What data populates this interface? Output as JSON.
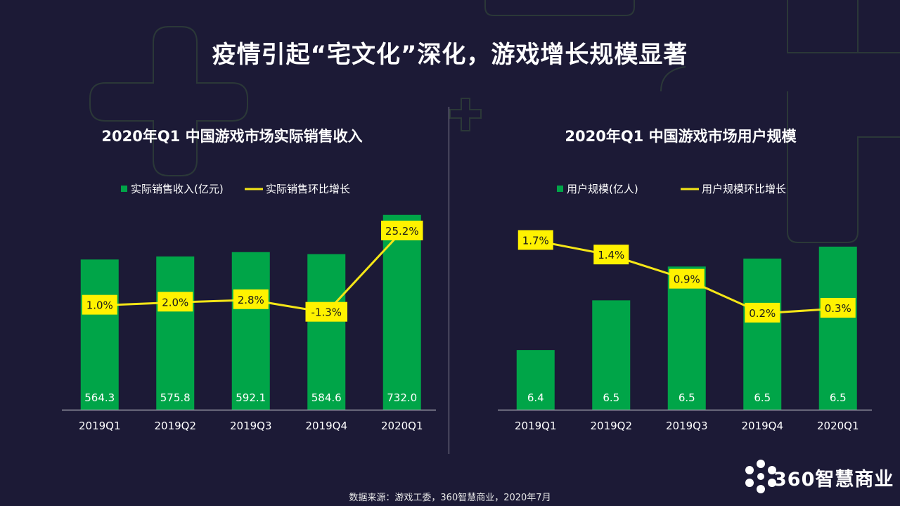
{
  "page": {
    "title": "疫情引起“宅文化”深化，游戏增长规模显著",
    "source": "数据来源：游戏工委，360智慧商业，2020年7月",
    "logo": "360智慧商业"
  },
  "colors": {
    "background": "#1c1a36",
    "bar": "#00a548",
    "line": "#f5e617",
    "label_bg": "#fff200",
    "label_text": "#1a1a1a",
    "axis": "#9a9aa8",
    "deco_stroke": "#2c3a3a"
  },
  "chart_data": [
    {
      "type": "bar",
      "title": "2020年Q1 中国游戏市场实际销售收入",
      "categories": [
        "2019Q1",
        "2019Q2",
        "2019Q3",
        "2019Q4",
        "2020Q1"
      ],
      "series": [
        {
          "name": "实际销售收入(亿元)",
          "type": "bar",
          "values": [
            564.3,
            575.8,
            592.1,
            584.6,
            732.0
          ],
          "labels": [
            "564.3",
            "575.8",
            "592.1",
            "584.6",
            "732.0"
          ]
        },
        {
          "name": "实际销售环比增长",
          "type": "line",
          "values": [
            1.0,
            2.0,
            2.8,
            -1.3,
            25.2
          ],
          "labels": [
            "1.0%",
            "2.0%",
            "2.8%",
            "-1.3%",
            "25.2%"
          ]
        }
      ],
      "bar_ylim": [
        0,
        800
      ],
      "line_ylim": [
        -30,
        30
      ],
      "legend": "top-center",
      "grid": false
    },
    {
      "type": "bar",
      "title": "2020年Q1 中国游戏市场用户规模",
      "categories": [
        "2019Q1",
        "2019Q2",
        "2019Q3",
        "2019Q4",
        "2020Q1"
      ],
      "series": [
        {
          "name": "用户规模(亿人)",
          "type": "bar",
          "values": [
            6.4,
            6.5,
            6.5,
            6.5,
            6.5
          ],
          "labels": [
            "6.4",
            "6.5",
            "6.5",
            "6.5",
            "6.5"
          ]
        },
        {
          "name": "用户规模环比增长",
          "type": "line",
          "values": [
            1.7,
            1.4,
            0.9,
            0.2,
            0.3
          ],
          "labels": [
            "1.7%",
            "1.4%",
            "0.9%",
            "0.2%",
            "0.3%"
          ]
        }
      ],
      "bar_heights_pct": [
        0.3,
        0.55,
        0.72,
        0.76,
        0.82
      ],
      "line_ylim": [
        -1.6,
        2.2
      ],
      "legend": "top-center",
      "grid": false
    }
  ]
}
